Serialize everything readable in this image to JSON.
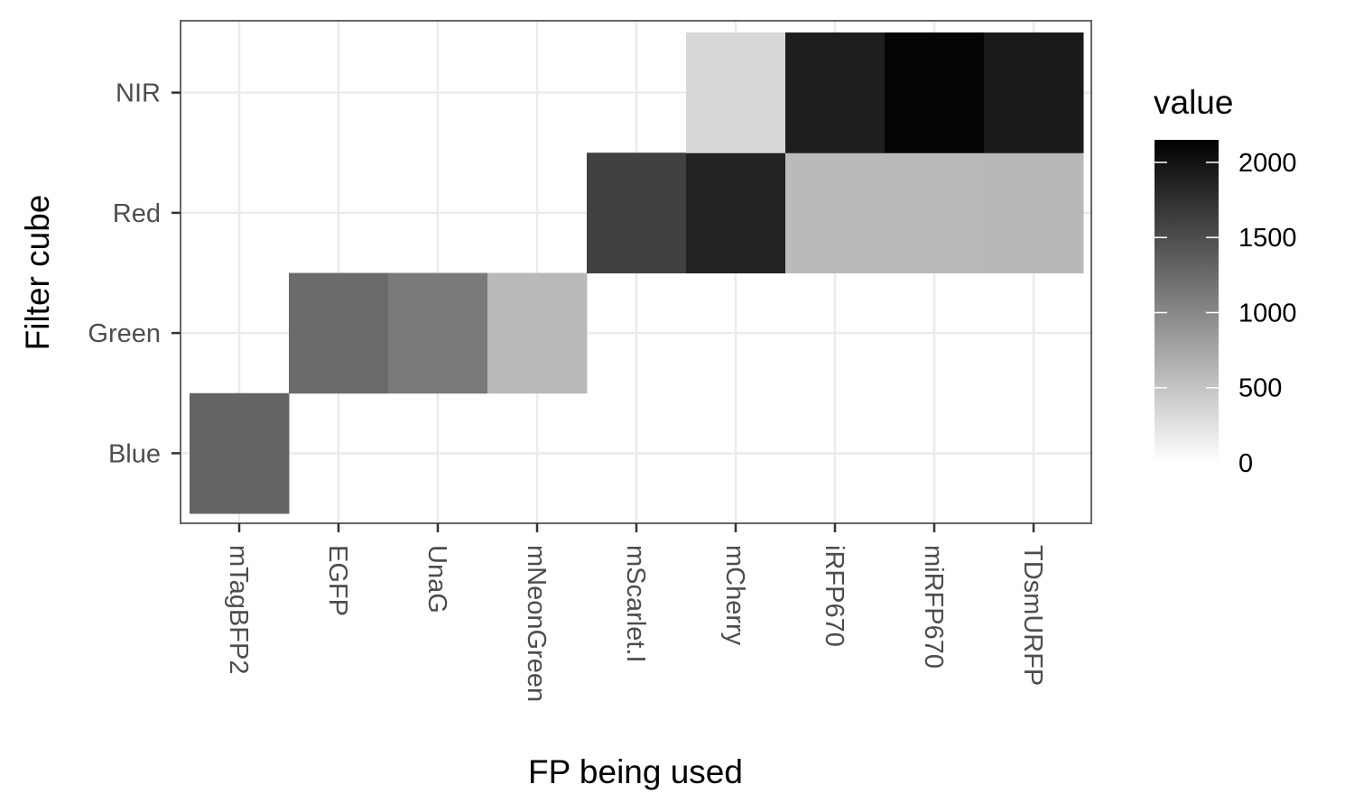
{
  "chart_data": {
    "type": "heatmap",
    "title": "",
    "xlabel": "FP being used",
    "ylabel": "Filter cube",
    "x_categories": [
      "mTagBFP2",
      "EGFP",
      "UnaG",
      "mNeonGreen",
      "mScarlet.I",
      "mCherry",
      "iRFP670",
      "miRFP670",
      "TDsmURFP"
    ],
    "y_categories": [
      "Blue",
      "Green",
      "Red",
      "NIR"
    ],
    "values": [
      [
        1300,
        0,
        0,
        0,
        0,
        0,
        0,
        0,
        0
      ],
      [
        0,
        1250,
        1120,
        590,
        0,
        0,
        0,
        0,
        0
      ],
      [
        0,
        0,
        0,
        0,
        1600,
        1860,
        580,
        580,
        600
      ],
      [
        0,
        0,
        0,
        0,
        0,
        330,
        1900,
        2120,
        1930
      ]
    ],
    "legend": {
      "title": "value",
      "ticks": [
        0,
        500,
        1000,
        1500,
        2000
      ],
      "min": 0,
      "max": 2150,
      "placement": "right"
    },
    "colors": {
      "low": "#ffffff",
      "high": "#000000",
      "panel_border": "#333333",
      "grid": "#ebebeb"
    },
    "grid": true
  }
}
